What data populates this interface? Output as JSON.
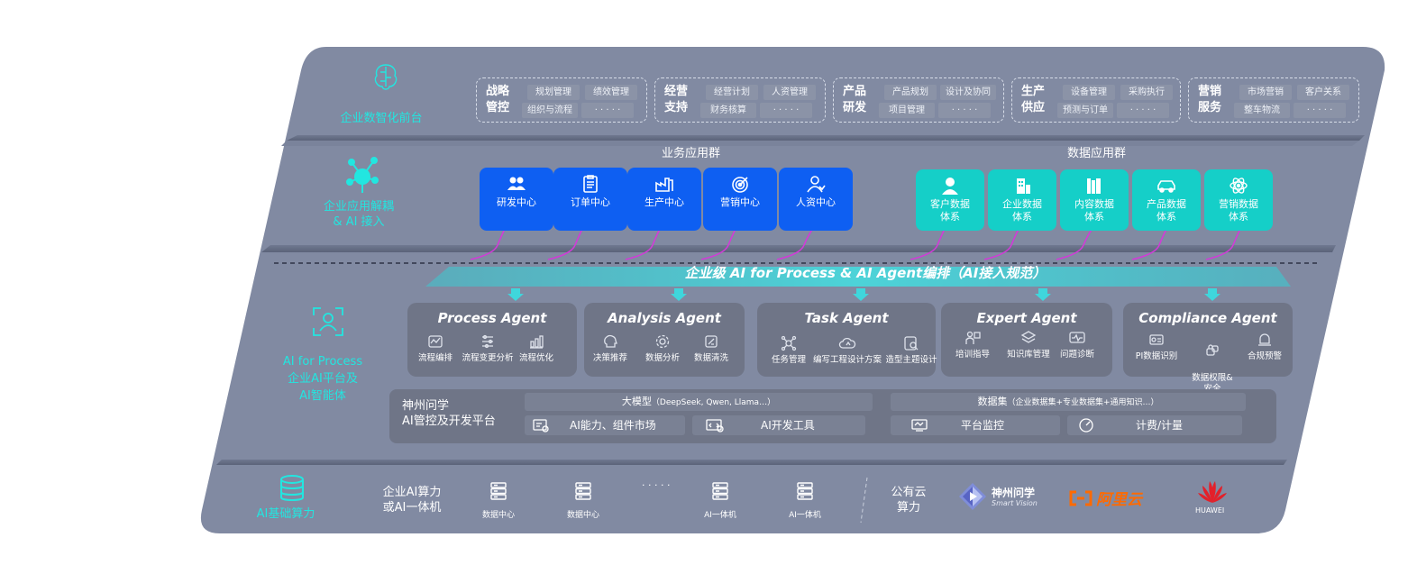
{
  "layers": {
    "frontend": "企业数智化前台",
    "app_decouple_1": "企业应用解耦",
    "app_decouple_2": "& AI 接入",
    "ai_process_1": "AI for Process",
    "ai_process_2": "企业AI平台及",
    "ai_process_3": "AI智能体",
    "compute": "AI基础算力"
  },
  "top_groups": [
    {
      "title_1": "战略",
      "title_2": "管控",
      "chips": [
        "规划管理",
        "绩效管理",
        "组织与流程",
        "· · · · ·"
      ]
    },
    {
      "title_1": "经营",
      "title_2": "支持",
      "chips": [
        "经营计划",
        "人资管理",
        "财务核算",
        "· · · · ·"
      ]
    },
    {
      "title_1": "产品",
      "title_2": "研发",
      "chips": [
        "产品规划",
        "设计及协同",
        "项目管理",
        "· · · · ·"
      ]
    },
    {
      "title_1": "生产",
      "title_2": "供应",
      "chips": [
        "设备管理",
        "采购执行",
        "预测与订单",
        "· · · · ·"
      ]
    },
    {
      "title_1": "营销",
      "title_2": "服务",
      "chips": [
        "市场营销",
        "客户关系",
        "整车物流",
        "· · · · ·"
      ]
    }
  ],
  "business_apps": {
    "title": "业务应用群",
    "items": [
      "研发中心",
      "订单中心",
      "生产中心",
      "营销中心",
      "人资中心"
    ]
  },
  "data_apps": {
    "title": "数据应用群",
    "items": [
      {
        "l1": "客户数据",
        "l2": "体系"
      },
      {
        "l1": "企业数据",
        "l2": "体系"
      },
      {
        "l1": "内容数据",
        "l2": "体系"
      },
      {
        "l1": "产品数据",
        "l2": "体系"
      },
      {
        "l1": "营销数据",
        "l2": "体系"
      }
    ]
  },
  "banner": "企业级 AI for Process & AI Agent编排（AI接入规范）",
  "agents": [
    {
      "title": "Process Agent",
      "items": [
        "流程编排",
        "流程变更分析",
        "流程优化"
      ]
    },
    {
      "title": "Analysis Agent",
      "items": [
        "决策推荐",
        "数据分析",
        "数据清洗"
      ]
    },
    {
      "title": "Task Agent",
      "items": [
        "任务管理",
        "编写工程设计方案",
        "造型主题设计"
      ]
    },
    {
      "title": "Expert Agent",
      "items": [
        "培训指导",
        "知识库管理",
        "问题诊断"
      ]
    },
    {
      "title": "Compliance Agent",
      "items": [
        "PI数据识别",
        "数据权限&\n安全",
        "合规预警"
      ]
    }
  ],
  "platform": {
    "name_1": "神州问学",
    "name_2": "AI管控及开发平台",
    "model_head": "大模型",
    "model_sub": "（DeepSeek, Qwen, Llama…）",
    "dataset_head": "数据集",
    "dataset_sub": "（企业数据集+专业数据集+通用知识…）",
    "cells": [
      "AI能力、组件市场",
      "AI开发工具",
      "平台监控",
      "计费/计量"
    ]
  },
  "compute": {
    "enterprise_1": "企业AI算力",
    "enterprise_2": "或AI一体机",
    "servers": [
      "数据中心",
      "数据中心",
      "AI一体机",
      "AI一体机"
    ],
    "ellipsis": "· · · · ·",
    "public_1": "公有云",
    "public_2": "算力",
    "vendors": {
      "shenzhou_1": "神州问学",
      "shenzhou_2": "Smart Vision",
      "aliyun": "阿里云",
      "huawei": "HUAWEI"
    }
  },
  "colors": {
    "panel": "#818aa2",
    "accent_cyan": "#1fe3e0",
    "tile_blue": "#0e5ff2",
    "tile_teal": "#15cfc8",
    "arrow_magenta": "#d23ad8",
    "aliyun_orange": "#ff6a00",
    "huawei_red": "#e3202a"
  }
}
